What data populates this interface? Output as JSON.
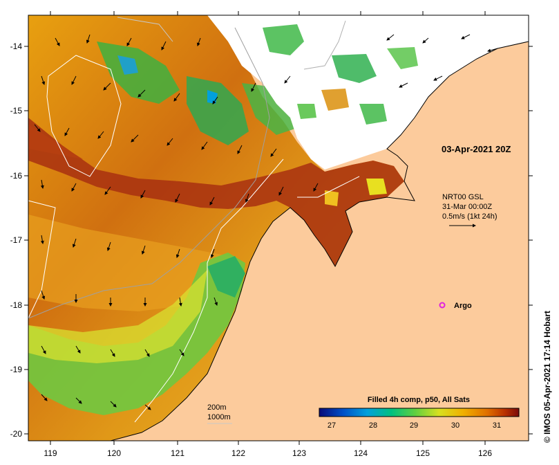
{
  "map": {
    "timestamp": "03-Apr-2021 20Z",
    "velocity_legend": {
      "line1": "NRT00 GSL",
      "line2": "31-Mar 00:00Z",
      "line3": "0.5m/s (1kt 24h)"
    },
    "argo_label": "Argo",
    "isobaths": {
      "a": "200m",
      "b": "1000m"
    },
    "colorbar": {
      "title": "Filled 4h comp, p50, All Sats",
      "ticks": [
        "27",
        "28",
        "29",
        "30",
        "31"
      ],
      "colors": [
        "#0a0a78",
        "#0050c8",
        "#00a0dc",
        "#00c080",
        "#60d040",
        "#d8e020",
        "#f0b000",
        "#e07000",
        "#b83000",
        "#7a0a0a"
      ]
    },
    "credit": "© IMOS 05-Apr-2021 17:14 Hobart",
    "lat_ticks": [
      "-14",
      "-15",
      "-16",
      "-17",
      "-18",
      "-19",
      "-20"
    ],
    "lon_ticks": [
      "119",
      "120",
      "121",
      "122",
      "123",
      "124",
      "125",
      "126"
    ],
    "colors": {
      "land": "#fccb9c",
      "cloud": "#ffffff",
      "argo": "#e020e0"
    }
  }
}
